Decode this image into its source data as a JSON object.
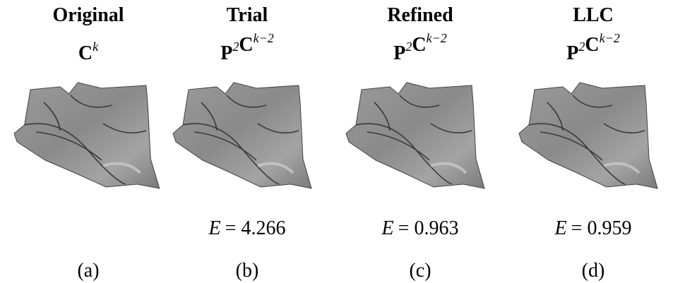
{
  "panels": [
    {
      "title": "Original",
      "formula": [
        {
          "base": "C",
          "sup": "k"
        }
      ],
      "caption": "(a)"
    },
    {
      "title": "Trial",
      "formula": [
        {
          "base": "P",
          "sup": "2"
        },
        {
          "base": "C",
          "sup": "k−2"
        }
      ],
      "error": {
        "symbol": "E",
        "rest": "= 4.266"
      },
      "caption": "(b)"
    },
    {
      "title": "Refined",
      "formula": [
        {
          "base": "P",
          "sup": "2"
        },
        {
          "base": "C",
          "sup": "k−2"
        }
      ],
      "error": {
        "symbol": "E",
        "rest": "= 0.963"
      },
      "caption": "(c)"
    },
    {
      "title": "LLC",
      "formula": [
        {
          "base": "P",
          "sup": "2"
        },
        {
          "base": "C",
          "sup": "k−2"
        }
      ],
      "error": {
        "symbol": "E",
        "rest": "= 0.959"
      },
      "caption": "(d)"
    }
  ]
}
